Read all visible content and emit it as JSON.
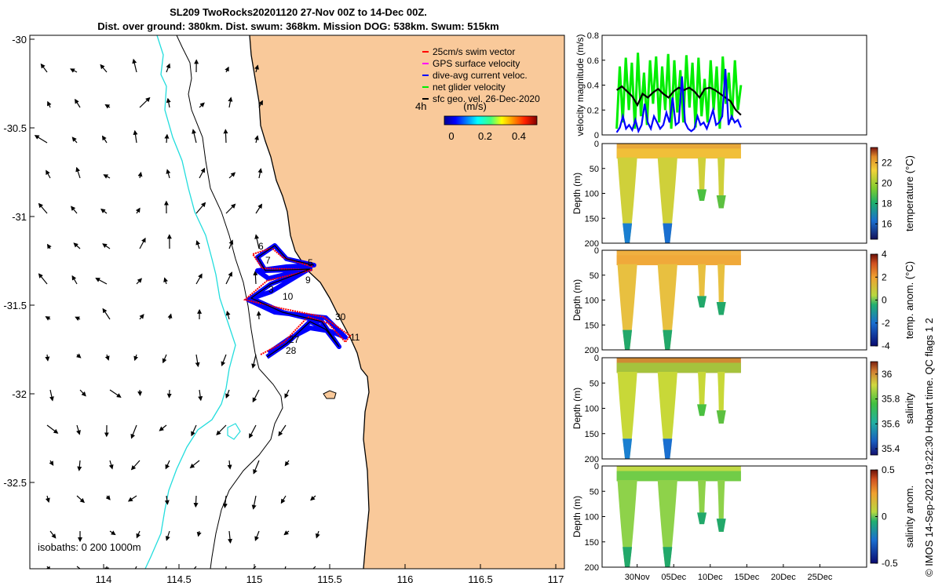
{
  "title_line1": "SL209 TwoRocks20201120 27-Nov 00Z to 14-Dec 00Z.",
  "title_line2": "Dist. over ground: 380km. Dist. swum: 368km. Mission DOG: 538km. Swum: 515km",
  "footer": "© IMOS 14-Sep-2022 19:22:30 Hobart time. QC flags 1  2",
  "map": {
    "isobaths_label": "isobaths: 0   200  1000m",
    "xticks": [
      "114",
      "114.5",
      "115",
      "115.5",
      "116",
      "116.5",
      "117"
    ],
    "yticks": [
      "-30",
      "-30.5",
      "-31",
      "-31.5",
      "-32",
      "-32.5"
    ],
    "legend": [
      {
        "label": "25cm/s swim vector",
        "color": "#ff0000"
      },
      {
        "label": "GPS surface velocity",
        "color": "#ff00ff"
      },
      {
        "label": "dive-avg current veloc.",
        "color": "#0000ff"
      },
      {
        "label": "net glider velocity",
        "color": "#00ee00"
      },
      {
        "label": "sfc geo. vel. 26-Dec-2020",
        "color": "#000000"
      }
    ],
    "legend_4h": "4h",
    "colorbar_title": "(m/s)",
    "colorbar_ticks": [
      "0",
      "0.2",
      "0.4"
    ],
    "day_labels": [
      "6",
      "7",
      "5",
      "9",
      "3",
      "10",
      "30",
      "11",
      "27",
      "28"
    ],
    "land_color": "#f9c99a",
    "isobath_color": "#22dddd"
  },
  "chart_data": [
    {
      "type": "line",
      "ylabel": "velocity magnitude (m/s)",
      "yticks": [
        "0",
        "0.2",
        "0.4",
        "0.6",
        "0.8"
      ],
      "ylim": [
        0,
        0.8
      ],
      "x_range": [
        "27-Nov",
        "14-Dec"
      ],
      "series": [
        {
          "color": "#00ee00",
          "values": [
            0.05,
            0.55,
            0.1,
            0.62,
            0.2,
            0.58,
            0.05,
            0.66,
            0.15,
            0.5,
            0.08,
            0.6,
            0.25,
            0.63,
            0.1,
            0.55,
            0.2,
            0.65,
            0.05,
            0.6,
            0.18,
            0.52,
            0.1,
            0.64,
            0.22,
            0.58,
            0.06,
            0.62,
            0.15,
            0.45,
            0.1,
            0.6,
            0.2,
            0.55,
            0.05,
            0.63,
            0.25,
            0.5,
            0.12,
            0.6,
            0.2,
            0.4
          ]
        },
        {
          "color": "#000000",
          "values": [
            0.36,
            0.39,
            0.35,
            0.31,
            0.24,
            0.33,
            0.3,
            0.34,
            0.37,
            0.33,
            0.3,
            0.35,
            0.38,
            0.36,
            0.38,
            0.35,
            0.3,
            0.37,
            0.38,
            0.36,
            0.33,
            0.3,
            0.27,
            0.2,
            0.16
          ]
        },
        {
          "color": "#0000ff",
          "values": [
            0.02,
            0.06,
            0.15,
            0.05,
            0.08,
            0.04,
            0.12,
            0.03,
            0.08,
            0.25,
            0.1,
            0.05,
            0.15,
            0.1,
            0.05,
            0.08,
            0.18,
            0.1,
            0.3,
            0.08,
            0.1,
            0.47,
            0.1,
            0.05,
            0.03,
            0.05,
            0.15,
            0.08,
            0.1,
            0.05,
            0.12,
            0.2,
            0.08,
            0.1,
            0.15,
            0.53,
            0.08,
            0.15,
            0.1,
            0.12,
            0.06
          ]
        }
      ]
    },
    {
      "type": "heatmap",
      "ylabel": "Depth (m)",
      "clabel": "temperature (°C)",
      "cticks": [
        "16",
        "18",
        "20",
        "22"
      ],
      "clim": [
        14.5,
        23.5
      ],
      "ylim": [
        0,
        200
      ],
      "yticks": [
        "0",
        "50",
        "100",
        "150",
        "200"
      ]
    },
    {
      "type": "heatmap",
      "ylabel": "Depth (m)",
      "clabel": "temp. anom. (°C)",
      "cticks": [
        "-4",
        "-2",
        "0",
        "2",
        "4"
      ],
      "clim": [
        -4,
        4
      ],
      "ylim": [
        0,
        200
      ],
      "yticks": [
        "0",
        "50",
        "100",
        "150",
        "200"
      ]
    },
    {
      "type": "heatmap",
      "ylabel": "Depth (m)",
      "clabel": "salinity",
      "cticks": [
        "35.4",
        "35.6",
        "35.8",
        "36"
      ],
      "clim": [
        35.35,
        36.1
      ],
      "ylim": [
        0,
        200
      ],
      "yticks": [
        "0",
        "50",
        "100",
        "150",
        "200"
      ]
    },
    {
      "type": "heatmap",
      "ylabel": "Depth (m)",
      "clabel": "salinity anom.",
      "cticks": [
        "-0.5",
        "0",
        "0.5"
      ],
      "clim": [
        -0.5,
        0.5
      ],
      "ylim": [
        0,
        200
      ],
      "yticks": [
        "0",
        "50",
        "100",
        "150",
        "200"
      ],
      "xticks": [
        "30Nov",
        "05Dec",
        "10Dec",
        "15Dec",
        "20Dec",
        "25Dec"
      ]
    }
  ]
}
